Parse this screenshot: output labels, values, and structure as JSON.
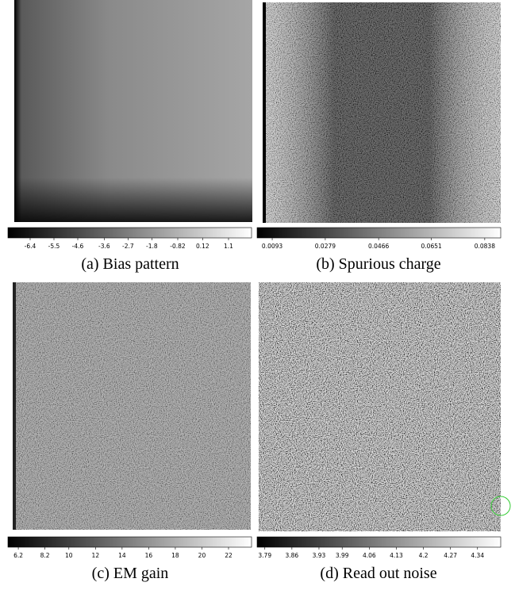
{
  "panels": [
    {
      "caption": "(a) Bias pattern",
      "colorbar": {
        "clim": [
          -7.24,
          1.97
        ],
        "ticks": [
          -6.4,
          -5.5,
          -4.6,
          -3.6,
          -2.7,
          -1.8,
          -0.82,
          0.12,
          1.1
        ]
      }
    },
    {
      "caption": "(b) Spurious charge",
      "colorbar": {
        "clim": [
          0.004,
          0.0894
        ],
        "ticks": [
          0.0093,
          0.0279,
          0.0466,
          0.0651,
          0.0838
        ]
      }
    },
    {
      "caption": "(c) EM gain",
      "colorbar": {
        "clim": [
          5.42,
          23.73
        ],
        "ticks": [
          6.2,
          8.2,
          10,
          12,
          14,
          16,
          18,
          20,
          22
        ]
      }
    },
    {
      "caption": "(d) Read out noise",
      "colorbar": {
        "clim": [
          3.77,
          4.4
        ],
        "ticks": [
          3.79,
          3.86,
          3.93,
          3.99,
          4.06,
          4.13,
          4.2,
          4.27,
          4.34
        ]
      }
    }
  ]
}
